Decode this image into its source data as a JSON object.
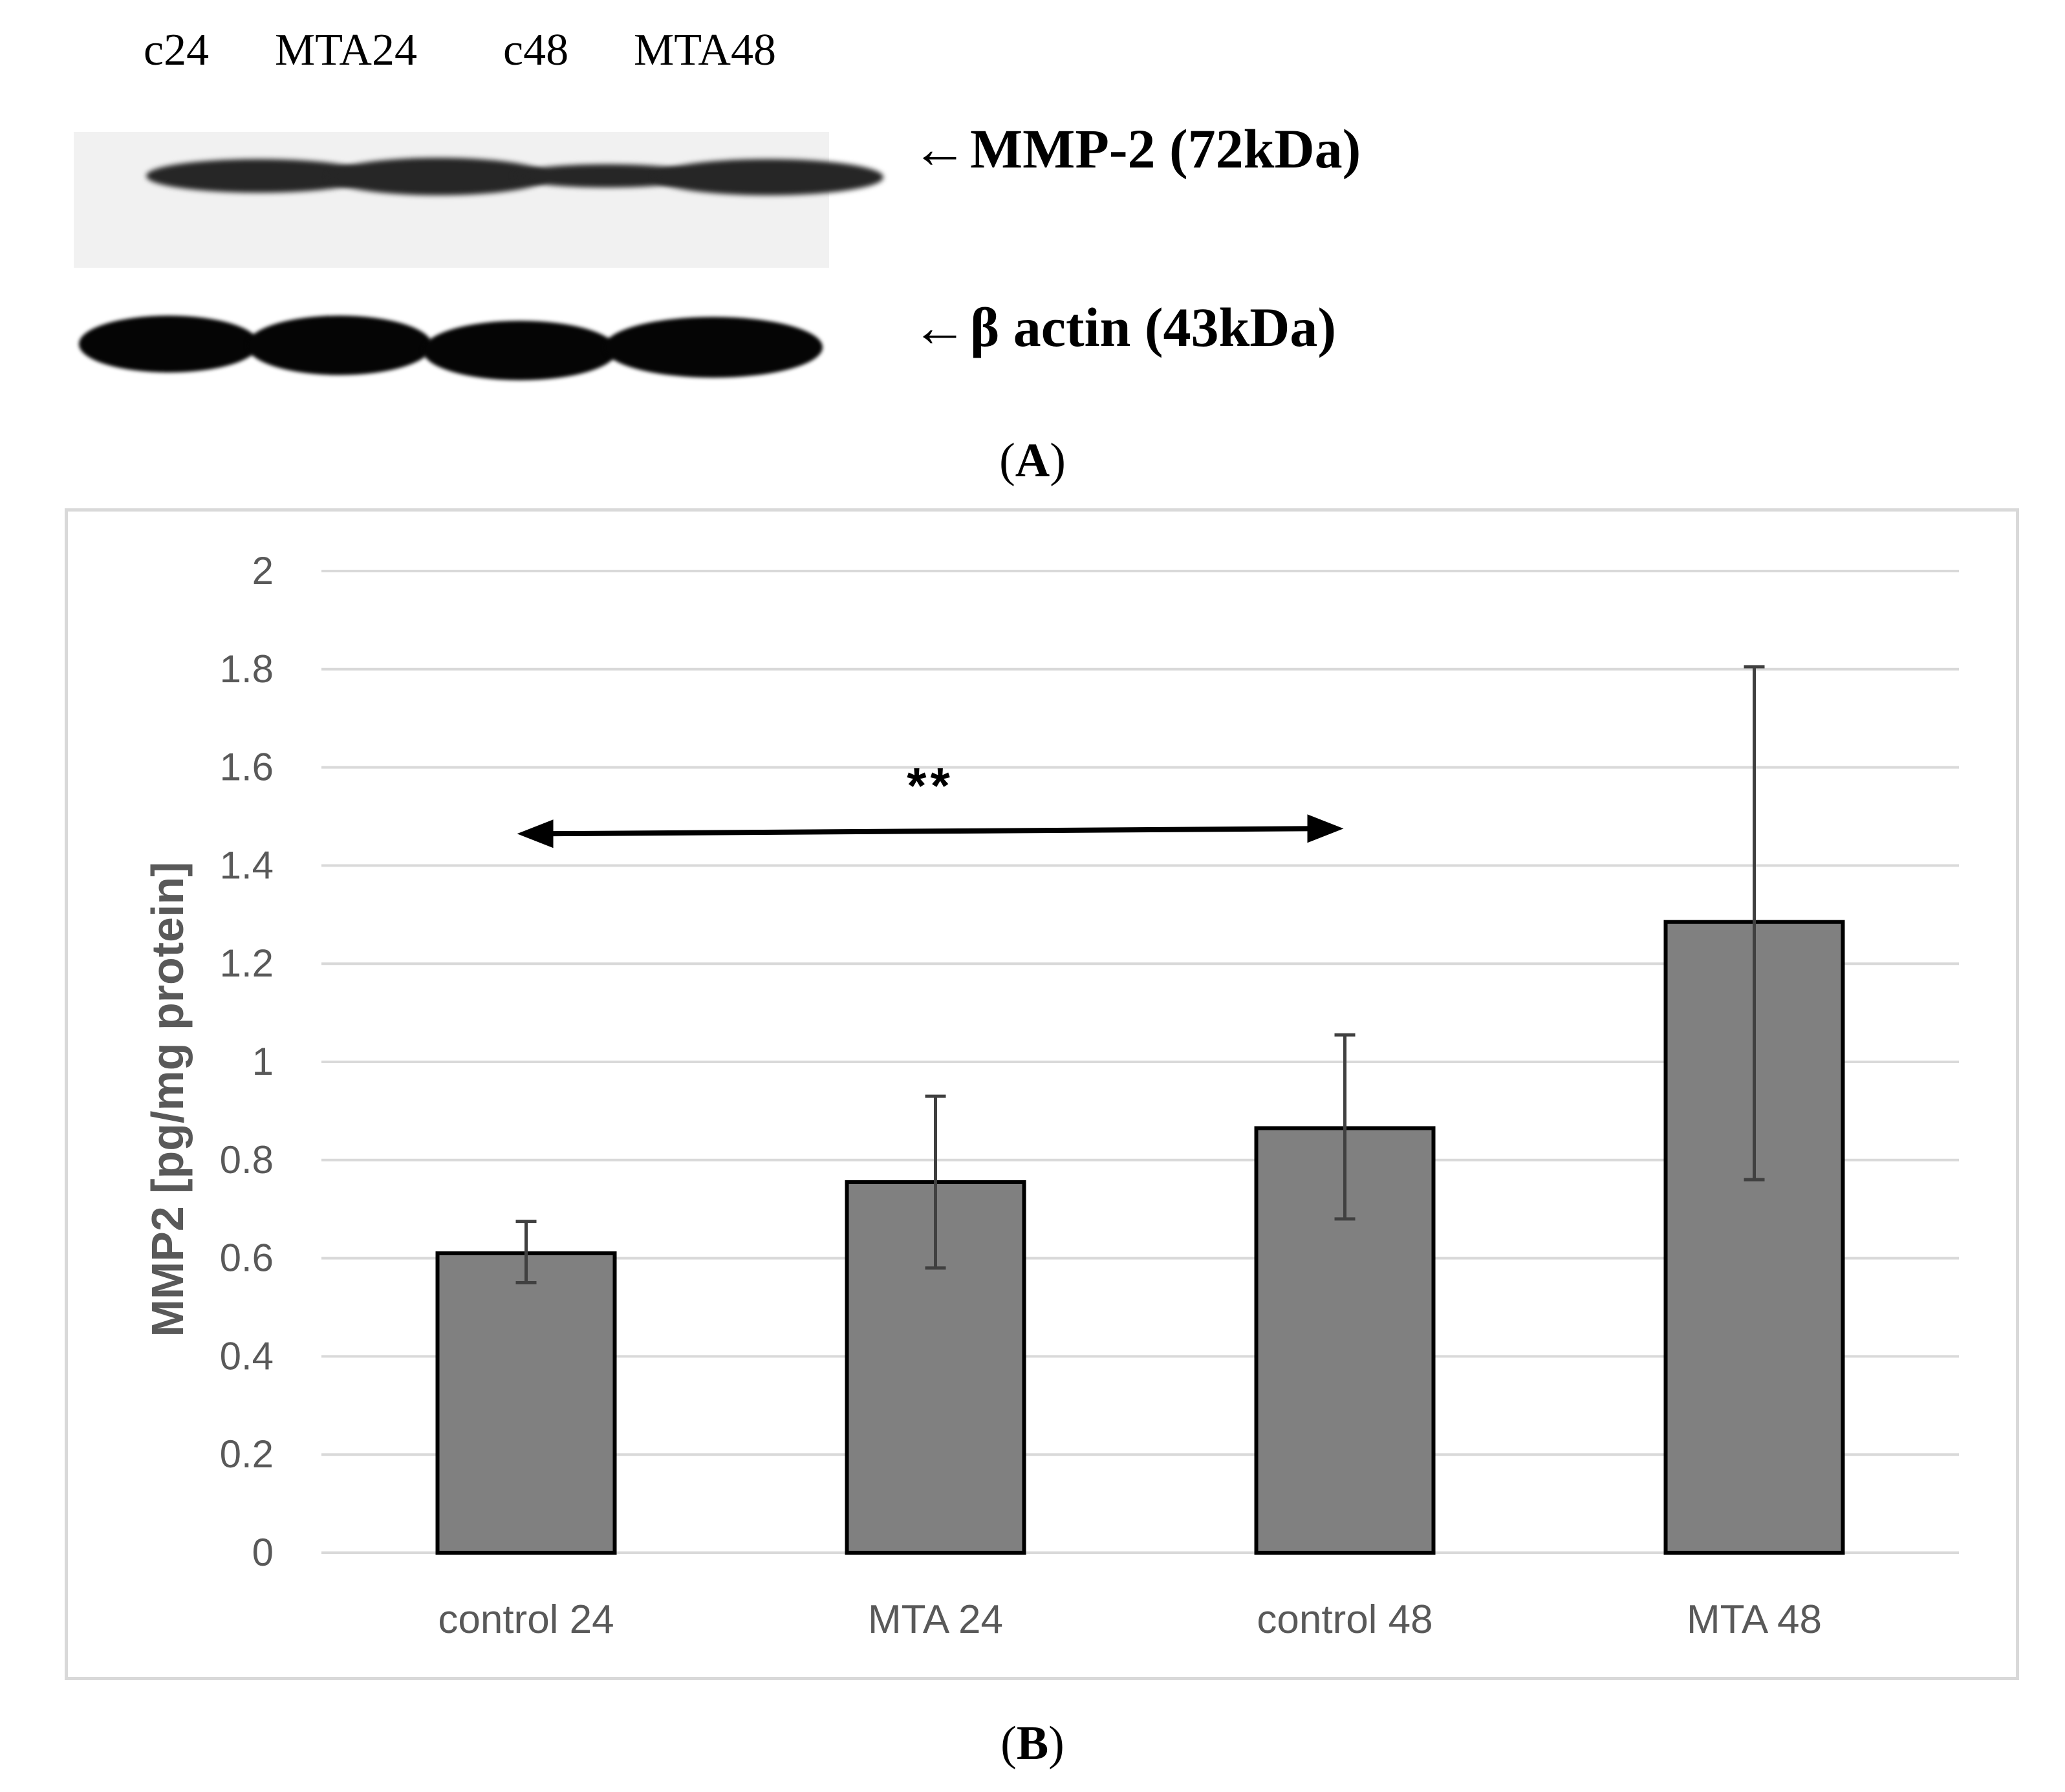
{
  "panel_a": {
    "lanes": [
      "c24",
      "MTA24",
      "c48",
      "MTA48"
    ],
    "markers": [
      {
        "arrow": "←",
        "label": "MMP-2 (72kDa)"
      },
      {
        "arrow": "←",
        "label": "β actin (43kDa)"
      }
    ],
    "caption_open": "(",
    "caption_letter": "A",
    "caption_close": ")"
  },
  "panel_b": {
    "caption_open": "(",
    "caption_letter": "B",
    "caption_close": ")"
  },
  "colors": {
    "bar_fill": "#808080",
    "bar_stroke": "#000000",
    "grid": "#d9d9d9",
    "tick_text": "#595959",
    "error_bar": "#404040"
  },
  "chart_data": {
    "type": "bar",
    "categories": [
      "control 24",
      "MTA 24",
      "control 48",
      "MTA 48"
    ],
    "values": [
      0.61,
      0.755,
      0.865,
      1.285
    ],
    "error_upper": [
      0.675,
      0.93,
      1.055,
      1.805
    ],
    "error_lower": [
      0.55,
      0.58,
      0.68,
      0.76
    ],
    "ylim": [
      0,
      2
    ],
    "yticks": [
      0,
      0.2,
      0.4,
      0.6,
      0.8,
      1,
      1.2,
      1.4,
      1.6,
      1.8,
      2
    ],
    "ytick_labels": [
      "0",
      "0.2",
      "0.4",
      "0.6",
      "0.8",
      "1",
      "1.2",
      "1.4",
      "1.6",
      "1.8",
      "2"
    ],
    "ylabel": "MMP2 [pg/mg protein]",
    "xlabel": "",
    "grid": true,
    "annotation": {
      "text": "**",
      "from_category": "control 24",
      "to_category": "control 48",
      "y_value": 1.47
    }
  }
}
